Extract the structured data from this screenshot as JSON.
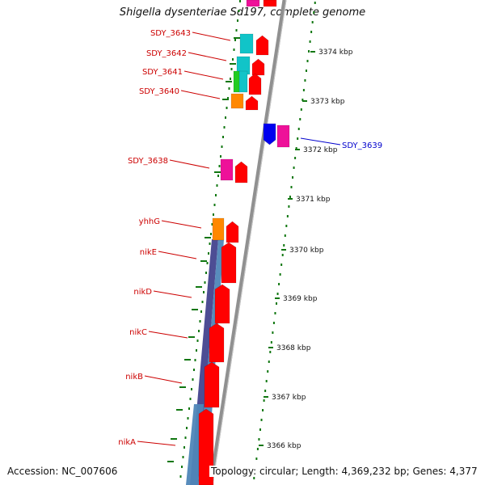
{
  "title": "Shigella dysenteriae Sd197, complete genome",
  "accession": "Accession: NC_007606",
  "topology": "Topology: circular; Length: 4,369,232 bp; Genes: 4,377",
  "colors": {
    "label_red": "#cc0000",
    "label_blue": "#0000cc",
    "tick_green": "#117711",
    "gene_red": "#ff0000",
    "gene_cyan": "#11c4c8",
    "gene_magenta": "#ee1199",
    "gene_orange": "#ff8800",
    "gene_green": "#22cc22",
    "gene_blue": "#0000ee",
    "backbone": "#909090",
    "band_blue": "#4f86b8",
    "band_purple": "#3a3a88"
  },
  "kbp_scale": [
    {
      "kbp": 3374,
      "label": "3374 kbp"
    },
    {
      "kbp": 3373,
      "label": "3373 kbp"
    },
    {
      "kbp": 3372,
      "label": "3372 kbp"
    },
    {
      "kbp": 3371,
      "label": "3371 kbp"
    },
    {
      "kbp": 3370,
      "label": "3370 kbp"
    },
    {
      "kbp": 3369,
      "label": "3369 kbp"
    },
    {
      "kbp": 3368,
      "label": "3368 kbp"
    },
    {
      "kbp": 3367,
      "label": "3367 kbp"
    },
    {
      "kbp": 3366,
      "label": "3366 kbp"
    }
  ],
  "gene_labels": [
    {
      "name": "SDY_3643",
      "color": "label_red"
    },
    {
      "name": "SDY_3642",
      "color": "label_red"
    },
    {
      "name": "SDY_3641",
      "color": "label_red"
    },
    {
      "name": "SDY_3640",
      "color": "label_red"
    },
    {
      "name": "SDY_3639",
      "color": "label_blue"
    },
    {
      "name": "SDY_3638",
      "color": "label_red"
    },
    {
      "name": "yhhG",
      "color": "label_red"
    },
    {
      "name": "nikE",
      "color": "label_red"
    },
    {
      "name": "nikD",
      "color": "label_red"
    },
    {
      "name": "nikC",
      "color": "label_red"
    },
    {
      "name": "nikB",
      "color": "label_red"
    },
    {
      "name": "nikA",
      "color": "label_red"
    }
  ]
}
